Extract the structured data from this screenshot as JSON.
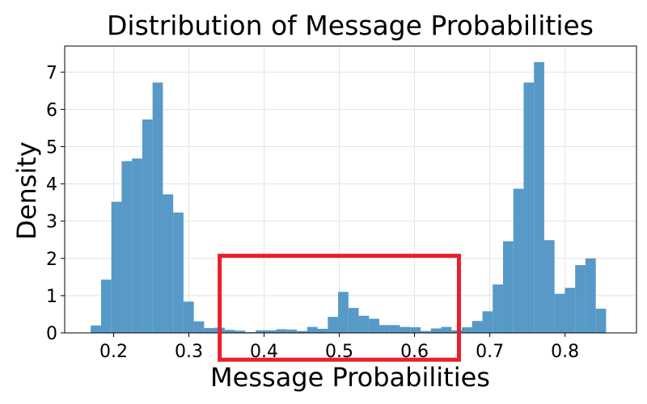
{
  "chart_data": {
    "type": "bar",
    "title": "Distribution of Message Probabilities",
    "xlabel": "Message Probabilities",
    "ylabel": "Density",
    "xlim": [
      0.135,
      0.895
    ],
    "ylim": [
      0,
      7.7
    ],
    "xticks": [
      0.2,
      0.3,
      0.4,
      0.5,
      0.6,
      0.7,
      0.8
    ],
    "xtick_labels": [
      "0.2",
      "0.3",
      "0.4",
      "0.5",
      "0.6",
      "0.7",
      "0.8"
    ],
    "yticks": [
      0,
      1,
      2,
      3,
      4,
      5,
      6,
      7
    ],
    "ytick_labels": [
      "0",
      "1",
      "2",
      "3",
      "4",
      "5",
      "6",
      "7"
    ],
    "grid": true,
    "bar_color": "#5799c7",
    "highlight_color": "#e8202a",
    "bin_width": 0.0137,
    "bin_starts": [
      0.1696,
      0.1833,
      0.197,
      0.2107,
      0.2244,
      0.2381,
      0.2518,
      0.2655,
      0.2792,
      0.2929,
      0.3066,
      0.3203,
      0.334,
      0.3477,
      0.3614,
      0.3751,
      0.3888,
      0.4025,
      0.4162,
      0.4299,
      0.4436,
      0.4573,
      0.471,
      0.4847,
      0.4984,
      0.5121,
      0.5258,
      0.5395,
      0.5532,
      0.5669,
      0.5806,
      0.5943,
      0.608,
      0.6217,
      0.6354,
      0.6491,
      0.6628,
      0.6765,
      0.6902,
      0.7039,
      0.7176,
      0.7313,
      0.745,
      0.7587,
      0.7724,
      0.7861,
      0.7998,
      0.8135,
      0.8272,
      0.8409,
      0.8546
    ],
    "values": [
      0.2,
      1.43,
      3.52,
      4.61,
      4.68,
      5.73,
      6.72,
      3.72,
      3.23,
      0.84,
      0.31,
      0.13,
      0.14,
      0.08,
      0.06,
      0.02,
      0.07,
      0.07,
      0.1,
      0.09,
      0.05,
      0.16,
      0.11,
      0.43,
      1.1,
      0.67,
      0.46,
      0.38,
      0.21,
      0.21,
      0.16,
      0.15,
      0.05,
      0.12,
      0.16,
      0.07,
      0.15,
      0.32,
      0.58,
      1.3,
      2.46,
      3.87,
      6.72,
      7.27,
      2.49,
      1.05,
      1.21,
      1.82,
      2.0,
      0.65,
      0.0
    ],
    "highlight": {
      "x0": 0.341,
      "x1": 0.659,
      "y0": -0.72,
      "y1": 2.07,
      "label": ""
    }
  }
}
